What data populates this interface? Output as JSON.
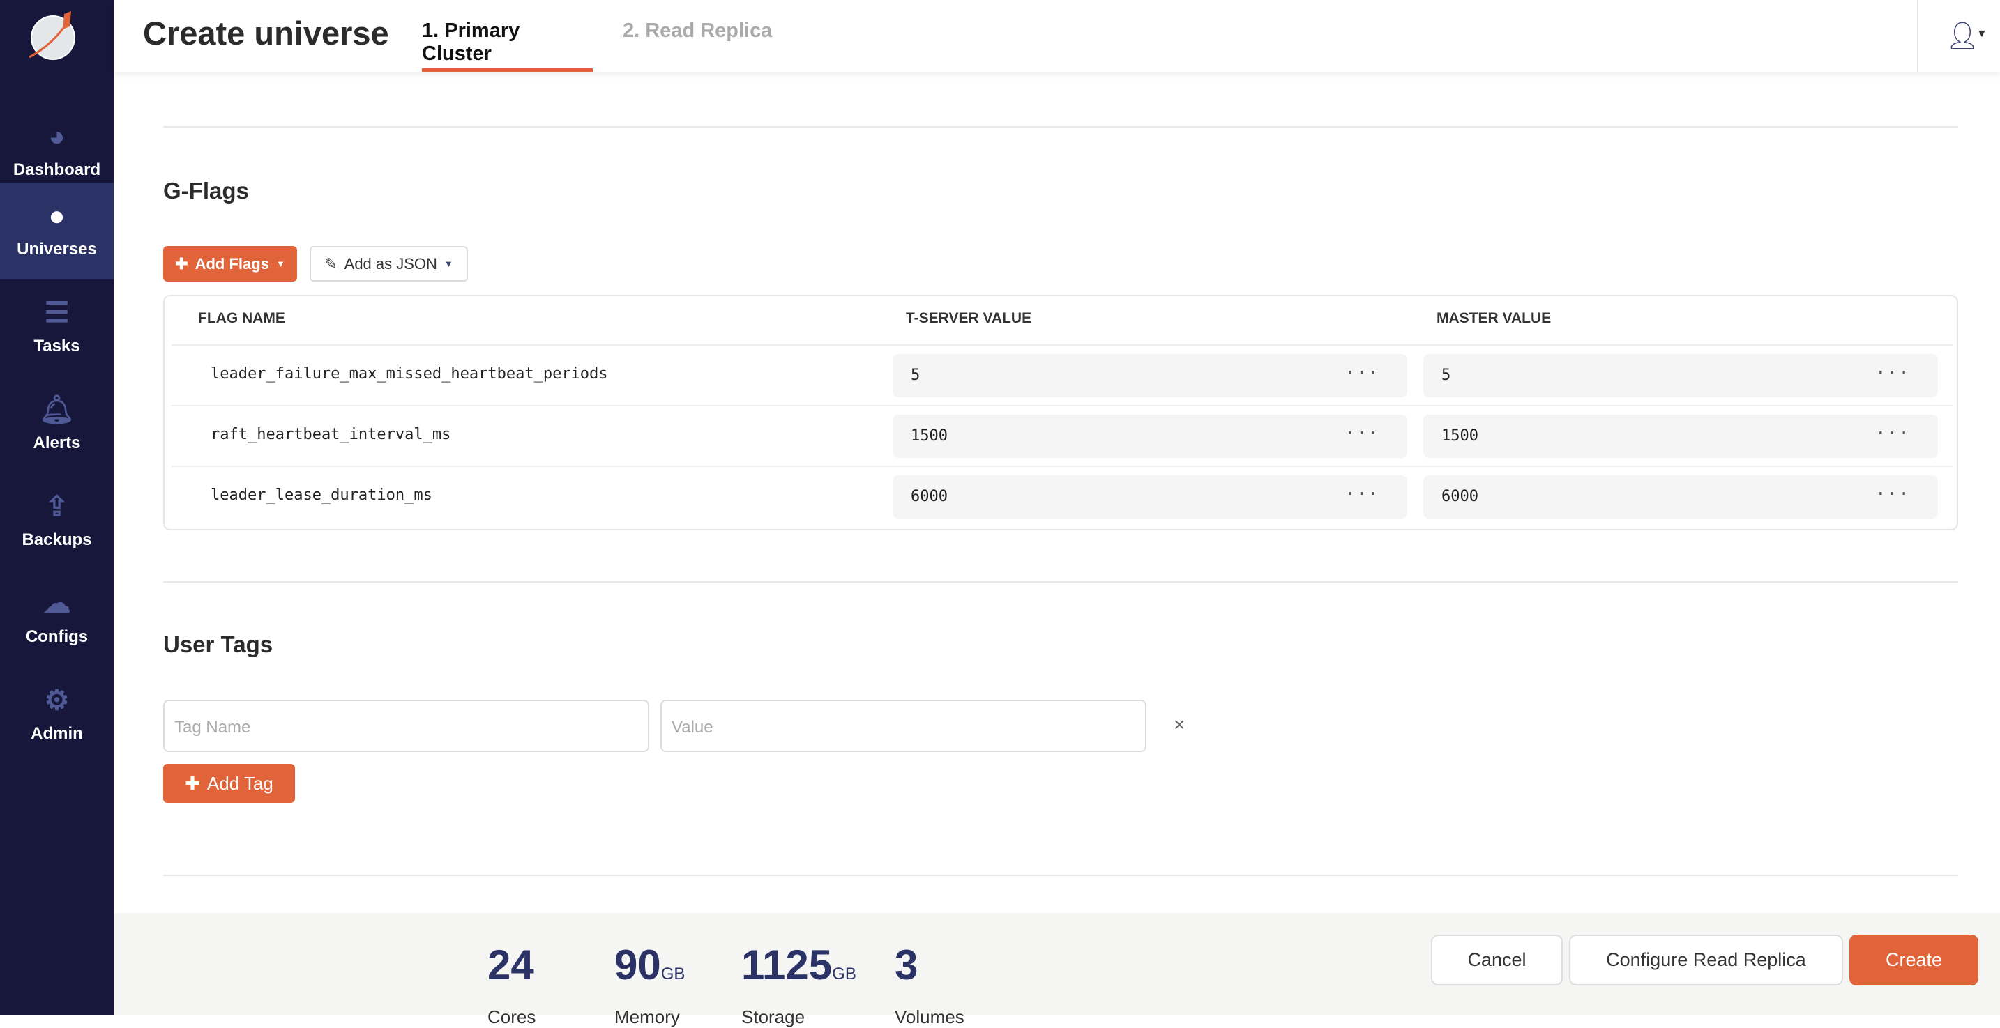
{
  "sidebar": {
    "items": [
      {
        "label": "Dashboard",
        "icon": "dashboard-gauge-icon"
      },
      {
        "label": "Universes",
        "icon": "globe-icon",
        "active": true
      },
      {
        "label": "Tasks",
        "icon": "list-icon"
      },
      {
        "label": "Alerts",
        "icon": "bell-icon"
      },
      {
        "label": "Backups",
        "icon": "upload-icon"
      },
      {
        "label": "Configs",
        "icon": "cloud-upload-icon"
      },
      {
        "label": "Admin",
        "icon": "gear-icon"
      }
    ]
  },
  "header": {
    "title": "Create universe",
    "tabs": [
      {
        "label": "1. Primary Cluster",
        "active": true
      },
      {
        "label": "2. Read Replica"
      }
    ]
  },
  "gflags": {
    "title": "G-Flags",
    "add_flags": "Add Flags",
    "add_json": "Add as JSON",
    "columns": [
      "FLAG NAME",
      "T-SERVER VALUE",
      "MASTER VALUE"
    ],
    "rows": [
      {
        "name": "leader_failure_max_missed_heartbeat_periods",
        "tserver": "5",
        "master": "5"
      },
      {
        "name": "raft_heartbeat_interval_ms",
        "tserver": "1500",
        "master": "1500"
      },
      {
        "name": "leader_lease_duration_ms",
        "tserver": "6000",
        "master": "6000"
      }
    ]
  },
  "tags": {
    "title": "User Tags",
    "name_placeholder": "Tag Name",
    "value_placeholder": "Value",
    "add": "Add Tag"
  },
  "footer": {
    "stats": [
      {
        "value": "24",
        "unit": "",
        "label": "Cores"
      },
      {
        "value": "90",
        "unit": "GB",
        "label": "Memory"
      },
      {
        "value": "1125",
        "unit": "GB",
        "label": "Storage"
      },
      {
        "value": "3",
        "unit": "",
        "label": "Volumes"
      }
    ],
    "cancel": "Cancel",
    "configure": "Configure Read Replica",
    "create": "Create"
  },
  "colors": {
    "accent": "#e0633a",
    "sidebar": "#16173a",
    "sidebar_active": "#2b3266",
    "stat": "#2b3266"
  }
}
